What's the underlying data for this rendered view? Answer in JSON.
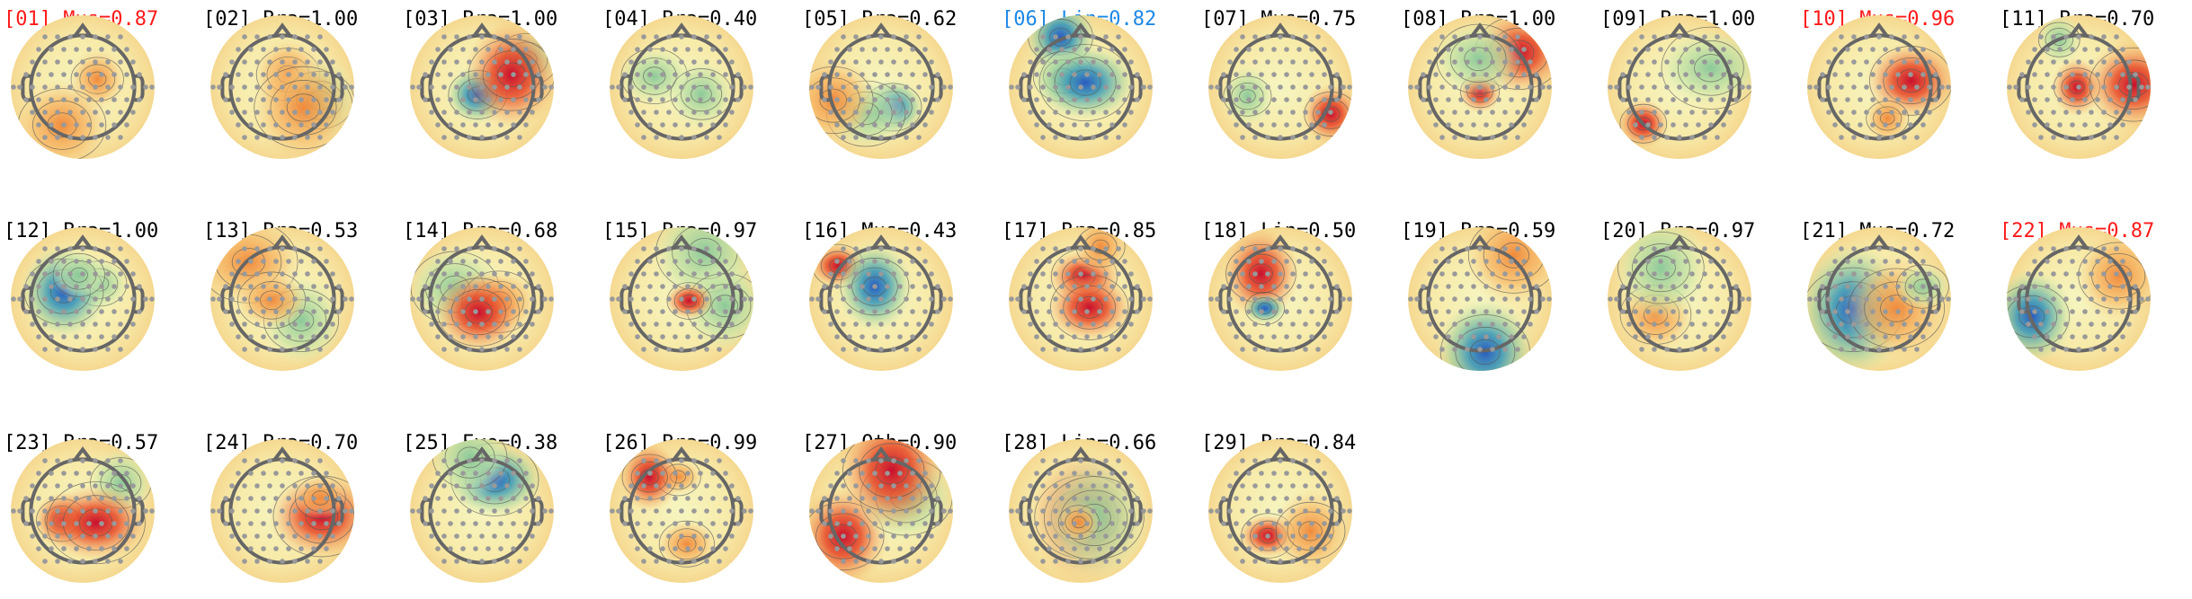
{
  "components": [
    {
      "label": "[01] Mus=0.87",
      "color": "#ff1a1a"
    },
    {
      "label": "[02] Bra=1.00",
      "color": "#000000"
    },
    {
      "label": "[03] Bra=1.00",
      "color": "#000000"
    },
    {
      "label": "[04] Bra=0.40",
      "color": "#000000"
    },
    {
      "label": "[05] Bra=0.62",
      "color": "#000000"
    },
    {
      "label": "[06] Lin=0.82",
      "color": "#1e88e5"
    },
    {
      "label": "[07] Mus=0.75",
      "color": "#000000"
    },
    {
      "label": "[08] Bra=1.00",
      "color": "#000000"
    },
    {
      "label": "[09] Bra=1.00",
      "color": "#000000"
    },
    {
      "label": "[10] Mus=0.96",
      "color": "#ff1a1a"
    },
    {
      "label": "[11] Bra=0.70",
      "color": "#000000"
    },
    {
      "label": "[12] Bra=1.00",
      "color": "#000000"
    },
    {
      "label": "[13] Bra=0.53",
      "color": "#000000"
    },
    {
      "label": "[14] Bra=0.68",
      "color": "#000000"
    },
    {
      "label": "[15] Bra=0.97",
      "color": "#000000"
    },
    {
      "label": "[16] Mus=0.43",
      "color": "#000000"
    },
    {
      "label": "[17] Bra=0.85",
      "color": "#000000"
    },
    {
      "label": "[18] Lin=0.50",
      "color": "#000000"
    },
    {
      "label": "[19] Bra=0.59",
      "color": "#000000"
    },
    {
      "label": "[20] Bra=0.97",
      "color": "#000000"
    },
    {
      "label": "[21] Mus=0.72",
      "color": "#000000"
    },
    {
      "label": "[22] Mus=0.87",
      "color": "#ff1a1a"
    },
    {
      "label": "[23] Bra=0.57",
      "color": "#000000"
    },
    {
      "label": "[24] Bra=0.70",
      "color": "#000000"
    },
    {
      "label": "[25] Eye=0.38",
      "color": "#000000"
    },
    {
      "label": "[26] Bra=0.99",
      "color": "#000000"
    },
    {
      "label": "[27] Oth=0.90",
      "color": "#000000"
    },
    {
      "label": "[28] Lin=0.66",
      "color": "#000000"
    },
    {
      "label": "[29] Bra=0.84",
      "color": "#000000"
    }
  ]
}
